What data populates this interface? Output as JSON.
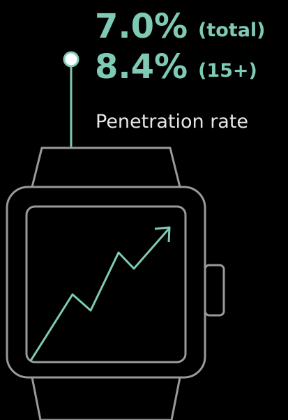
{
  "stats": [
    {
      "value": "7.0%",
      "label": "(total)"
    },
    {
      "value": "8.4%",
      "label": "(15+)"
    }
  ],
  "caption": "Penetration rate"
}
